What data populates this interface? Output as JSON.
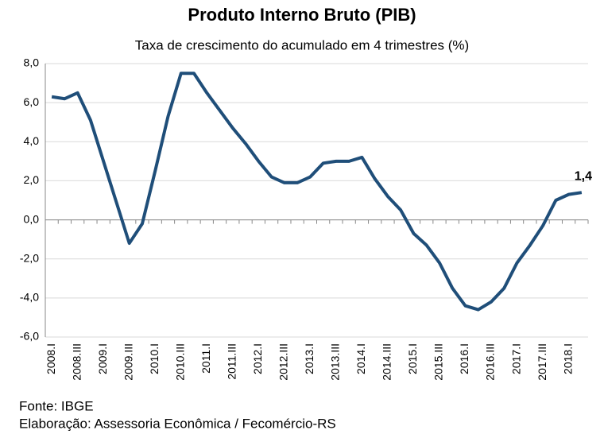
{
  "chart_data": {
    "type": "line",
    "title": "Produto Interno Bruto (PIB)",
    "subtitle": "Taxa de crescimento do acumulado em 4 trimestres (%)",
    "categories": [
      "2008.I",
      null,
      "2008.III",
      null,
      "2009.I",
      null,
      "2009.III",
      null,
      "2010.I",
      null,
      "2010.III",
      null,
      "2011.I",
      null,
      "2011.III",
      null,
      "2012.I",
      null,
      "2012.III",
      null,
      "2013.I",
      null,
      "2013.III",
      null,
      "2014.I",
      null,
      "2014.III",
      null,
      "2015.I",
      null,
      "2015.III",
      null,
      "2016.I",
      null,
      "2016.III",
      null,
      "2017.I",
      null,
      "2017.III",
      null,
      "2018.I",
      null
    ],
    "series": [
      {
        "name": "PIB",
        "color": "#1f4e79",
        "values": [
          6.3,
          6.2,
          6.5,
          5.1,
          3.0,
          0.9,
          -1.2,
          -0.2,
          2.5,
          5.3,
          7.5,
          7.5,
          6.5,
          5.6,
          4.7,
          3.9,
          3.0,
          2.2,
          1.9,
          1.9,
          2.2,
          2.9,
          3.0,
          3.0,
          3.2,
          2.1,
          1.2,
          0.5,
          -0.7,
          -1.3,
          -2.2,
          -3.5,
          -4.4,
          -4.6,
          -4.2,
          -3.5,
          -2.2,
          -1.3,
          -0.3,
          1.0,
          1.3,
          1.4
        ],
        "value_labels": [
          null,
          null,
          null,
          null,
          null,
          null,
          null,
          null,
          null,
          null,
          null,
          null,
          null,
          null,
          null,
          null,
          null,
          null,
          null,
          null,
          null,
          null,
          null,
          null,
          null,
          null,
          null,
          null,
          null,
          null,
          null,
          null,
          null,
          null,
          null,
          null,
          null,
          null,
          null,
          null,
          null,
          "1,4"
        ]
      }
    ],
    "ylim": [
      -6,
      8
    ],
    "yticks": [
      {
        "value": -6,
        "label": "-6,0"
      },
      {
        "value": -4,
        "label": "-4,0"
      },
      {
        "value": -2,
        "label": "-2,0"
      },
      {
        "value": 0,
        "label": "0,0"
      },
      {
        "value": 2,
        "label": "2,0"
      },
      {
        "value": 4,
        "label": "4,0"
      },
      {
        "value": 6,
        "label": "6,0"
      },
      {
        "value": 8,
        "label": "8,0"
      }
    ],
    "grid": true,
    "notes": [
      "Fonte: IBGE",
      "Elaboração: Assessoria Econômica / Fecomércio-RS"
    ]
  }
}
